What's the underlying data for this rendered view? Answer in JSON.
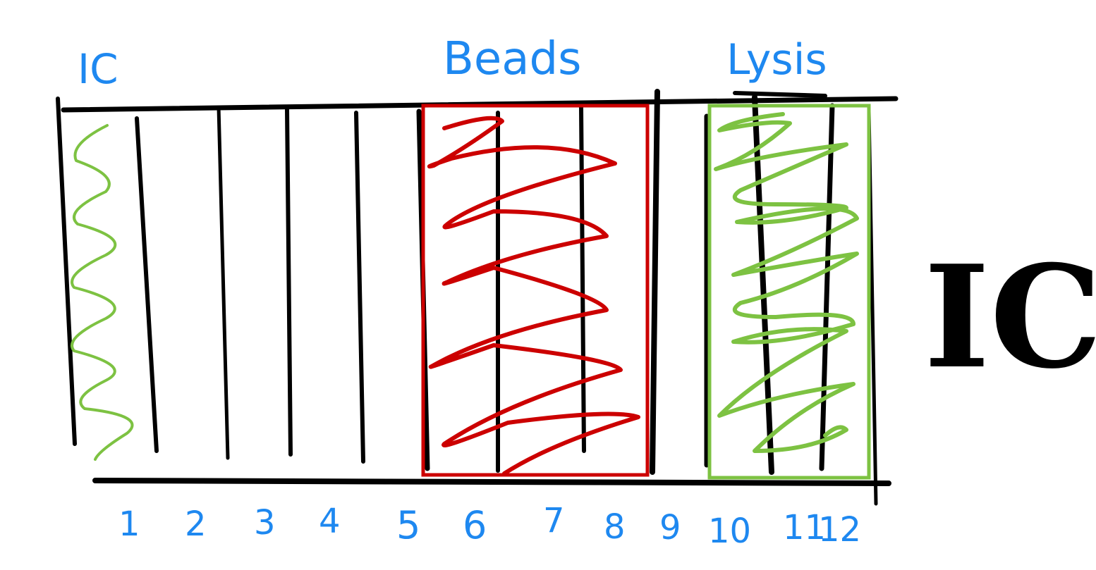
{
  "labels": {
    "ic_small": "IC",
    "beads": "Beads",
    "lysis": "Lysis",
    "ic_big": "IC"
  },
  "column_numbers": [
    "1",
    "2",
    "3",
    "4",
    "5",
    "6",
    "7",
    "8",
    "9",
    "10",
    "11",
    "12"
  ],
  "colors": {
    "ink": "#000000",
    "label_blue": "#1e88f0",
    "beads_red": "#cc0000",
    "green": "#7dc242"
  }
}
